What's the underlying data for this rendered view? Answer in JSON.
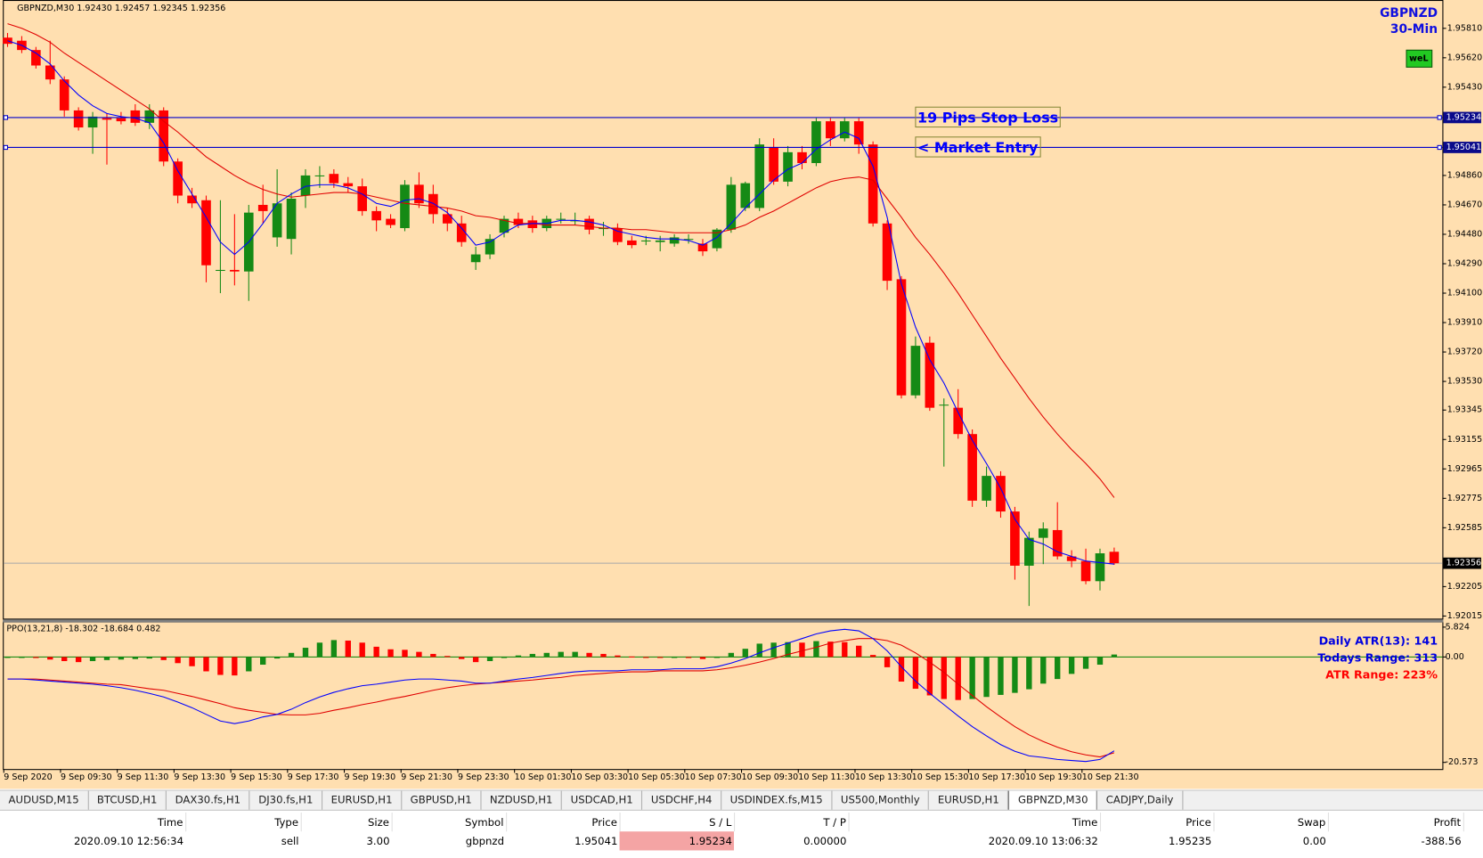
{
  "chart": {
    "header": "GBPNZD,M30  1.92430 1.92457 1.92345 1.92356",
    "symbol": "GBPNZD",
    "timeframe": "30-Min",
    "badge": "weL",
    "ylim": [
      1.91992,
      1.95993
    ],
    "yticks": [
      {
        "value": 1.9581,
        "label": "1.95810"
      },
      {
        "value": 1.9562,
        "label": "1.95620"
      },
      {
        "value": 1.9543,
        "label": "1.95430"
      },
      {
        "value": 1.9486,
        "label": "1.94860"
      },
      {
        "value": 1.9467,
        "label": "1.94670"
      },
      {
        "value": 1.9448,
        "label": "1.94480"
      },
      {
        "value": 1.9429,
        "label": "1.94290"
      },
      {
        "value": 1.941,
        "label": "1.94100"
      },
      {
        "value": 1.9391,
        "label": "1.93910"
      },
      {
        "value": 1.9372,
        "label": "1.93720"
      },
      {
        "value": 1.9353,
        "label": "1.93530"
      },
      1.93345,
      1.93155,
      1.92965,
      1.92775,
      1.92585,
      1.92205,
      1.92015
    ],
    "levels": [
      {
        "name": "19 Pips Stop Loss",
        "value": 1.95234,
        "label": "1.95234",
        "color": "#0000cc"
      },
      {
        "name": "< Market Entry",
        "value": 1.95041,
        "label": "1.95041",
        "color": "#0000cc"
      }
    ],
    "last_price": {
      "value": 1.92356,
      "label": "1.92356"
    },
    "up_color": "#158a15",
    "down_color": "#ff0000",
    "open": [
      1.9575,
      1.9573,
      1.9567,
      1.9557,
      1.9548,
      1.9528,
      1.9517,
      1.9523,
      1.9523,
      1.9528,
      1.952,
      1.9528,
      1.9495,
      1.9473,
      1.947,
      1.9425,
      1.9425,
      1.9424,
      1.9467,
      1.9446,
      1.9445,
      1.9473,
      1.9486,
      1.9487,
      1.9481,
      1.9479,
      1.9463,
      1.9458,
      1.9452,
      1.948,
      1.9474,
      1.9461,
      1.9455,
      1.943,
      1.9435,
      1.9449,
      1.9458,
      1.9457,
      1.9452,
      1.9458,
      1.9457,
      1.9458,
      1.9452,
      1.9452,
      1.9444,
      1.9444,
      1.9443,
      1.9442,
      1.9445,
      1.9442,
      1.9439,
      1.9451,
      1.9465,
      1.9465,
      1.9504,
      1.9482,
      1.9501,
      1.9494,
      1.9521,
      1.951,
      1.9521,
      1.9506,
      1.9455,
      1.9419,
      1.9344,
      1.9378,
      1.9338,
      1.9336,
      1.9319,
      1.9276,
      1.9292,
      1.9269,
      1.9234,
      1.9252,
      1.9257,
      1.924,
      1.9237,
      1.9224,
      1.9243
    ],
    "high": [
      1.9578,
      1.9576,
      1.9569,
      1.9573,
      1.955,
      1.953,
      1.9527,
      1.9526,
      1.9527,
      1.9532,
      1.9532,
      1.953,
      1.9497,
      1.9478,
      1.9473,
      1.947,
      1.9461,
      1.9467,
      1.948,
      1.949,
      1.9475,
      1.949,
      1.9492,
      1.949,
      1.9485,
      1.9484,
      1.9466,
      1.9461,
      1.9483,
      1.9488,
      1.948,
      1.9465,
      1.946,
      1.944,
      1.9448,
      1.946,
      1.9462,
      1.946,
      1.946,
      1.9462,
      1.9462,
      1.946,
      1.9456,
      1.9455,
      1.9447,
      1.9447,
      1.9447,
      1.9448,
      1.9448,
      1.9445,
      1.9452,
      1.9485,
      1.9482,
      1.951,
      1.951,
      1.9505,
      1.9505,
      1.9523,
      1.9523,
      1.9523,
      1.9523,
      1.9508,
      1.9457,
      1.9421,
      1.9382,
      1.9382,
      1.9342,
      1.9348,
      1.9322,
      1.9298,
      1.9295,
      1.9272,
      1.9256,
      1.9262,
      1.9275,
      1.9244,
      1.9245,
      1.9245,
      1.92457
    ],
    "low": [
      1.9569,
      1.9565,
      1.9555,
      1.9545,
      1.9524,
      1.9515,
      1.95,
      1.9493,
      1.9519,
      1.9518,
      1.9516,
      1.9492,
      1.9468,
      1.9465,
      1.9417,
      1.941,
      1.9415,
      1.9405,
      1.9455,
      1.944,
      1.9435,
      1.9465,
      1.9478,
      1.9478,
      1.9475,
      1.946,
      1.945,
      1.9452,
      1.945,
      1.9465,
      1.9455,
      1.945,
      1.944,
      1.9425,
      1.9432,
      1.9446,
      1.9452,
      1.9449,
      1.945,
      1.9455,
      1.9454,
      1.9448,
      1.9447,
      1.9441,
      1.9439,
      1.9441,
      1.9437,
      1.944,
      1.9442,
      1.9434,
      1.9437,
      1.9449,
      1.9463,
      1.9463,
      1.948,
      1.9479,
      1.949,
      1.9492,
      1.9505,
      1.9508,
      1.95,
      1.9453,
      1.9412,
      1.9342,
      1.9342,
      1.9334,
      1.9298,
      1.9316,
      1.9272,
      1.9272,
      1.9265,
      1.9225,
      1.9208,
      1.9235,
      1.9238,
      1.9233,
      1.9222,
      1.9218,
      1.92345
    ],
    "close": [
      1.9571,
      1.9567,
      1.9557,
      1.9548,
      1.9528,
      1.9517,
      1.9524,
      1.9522,
      1.9521,
      1.952,
      1.9528,
      1.9495,
      1.9473,
      1.9468,
      1.9428,
      1.9425,
      1.9424,
      1.9462,
      1.9463,
      1.9468,
      1.9471,
      1.9486,
      1.9486,
      1.9481,
      1.9479,
      1.9463,
      1.9457,
      1.9454,
      1.948,
      1.9468,
      1.9461,
      1.9455,
      1.9443,
      1.9435,
      1.9445,
      1.9458,
      1.9454,
      1.9452,
      1.9458,
      1.9458,
      1.9457,
      1.9451,
      1.9452,
      1.9443,
      1.9441,
      1.9444,
      1.9444,
      1.9446,
      1.9445,
      1.9437,
      1.9451,
      1.948,
      1.9481,
      1.9506,
      1.9482,
      1.9501,
      1.9494,
      1.9521,
      1.951,
      1.9521,
      1.9506,
      1.9455,
      1.9418,
      1.9344,
      1.9376,
      1.9336,
      1.9338,
      1.9319,
      1.9276,
      1.9292,
      1.9269,
      1.9234,
      1.9252,
      1.9258,
      1.924,
      1.9237,
      1.9224,
      1.9242,
      1.92356
    ],
    "ma_fast": {
      "color": "#0000ff",
      "values": [
        1.9573,
        1.957,
        1.9565,
        1.9558,
        1.9547,
        1.9538,
        1.9531,
        1.9526,
        1.9524,
        1.9523,
        1.952,
        1.9507,
        1.9489,
        1.9474,
        1.9459,
        1.9443,
        1.9435,
        1.9443,
        1.9455,
        1.9468,
        1.9474,
        1.9479,
        1.948,
        1.948,
        1.9478,
        1.9474,
        1.9468,
        1.9466,
        1.947,
        1.9471,
        1.9468,
        1.9462,
        1.9452,
        1.9441,
        1.9443,
        1.9449,
        1.9454,
        1.9455,
        1.9455,
        1.9457,
        1.9457,
        1.9456,
        1.9454,
        1.945,
        1.9448,
        1.9446,
        1.9445,
        1.9445,
        1.9444,
        1.9441,
        1.9446,
        1.9455,
        1.9465,
        1.9474,
        1.9483,
        1.949,
        1.9494,
        1.9503,
        1.9509,
        1.9514,
        1.951,
        1.9492,
        1.9459,
        1.9416,
        1.9388,
        1.9367,
        1.9352,
        1.9333,
        1.9315,
        1.93,
        1.9284,
        1.9264,
        1.9251,
        1.9248,
        1.9243,
        1.924,
        1.9237,
        1.9236,
        1.9235
      ]
    },
    "ma_slow": {
      "color": "#e00000",
      "values": [
        1.9584,
        1.9581,
        1.9577,
        1.9572,
        1.9565,
        1.9559,
        1.9553,
        1.9547,
        1.9541,
        1.9535,
        1.9529,
        1.9521,
        1.9514,
        1.9506,
        1.9498,
        1.9492,
        1.9486,
        1.9481,
        1.9477,
        1.9474,
        1.9472,
        1.9473,
        1.9474,
        1.9475,
        1.9475,
        1.9474,
        1.9472,
        1.947,
        1.9468,
        1.9467,
        1.9466,
        1.9465,
        1.9463,
        1.946,
        1.9459,
        1.9457,
        1.9455,
        1.9455,
        1.9454,
        1.9454,
        1.9454,
        1.9453,
        1.9452,
        1.9452,
        1.9451,
        1.9451,
        1.945,
        1.9449,
        1.9449,
        1.9449,
        1.9449,
        1.9451,
        1.9454,
        1.9459,
        1.9463,
        1.9468,
        1.9473,
        1.9478,
        1.9482,
        1.9484,
        1.9485,
        1.9483,
        1.9471,
        1.9459,
        1.9446,
        1.9435,
        1.9423,
        1.941,
        1.9396,
        1.9382,
        1.9368,
        1.9355,
        1.9342,
        1.933,
        1.9319,
        1.9309,
        1.93,
        1.929,
        1.9278
      ]
    },
    "xticks": [
      "9 Sep 2020",
      "9 Sep 09:30",
      "9 Sep 11:30",
      "9 Sep 13:30",
      "9 Sep 15:30",
      "9 Sep 17:30",
      "9 Sep 19:30",
      "9 Sep 21:30",
      "9 Sep 23:30",
      "10 Sep 01:30",
      "10 Sep 03:30",
      "10 Sep 05:30",
      "10 Sep 07:30",
      "10 Sep 09:30",
      "10 Sep 11:30",
      "10 Sep 13:30",
      "10 Sep 15:30",
      "10 Sep 17:30",
      "10 Sep 19:30",
      "10 Sep 21:30"
    ]
  },
  "indicator": {
    "title": "PPO(13,21,8) -18.302 -18.684 0.482",
    "ylim": [
      -21.87,
      6.93
    ],
    "yticks": [
      5.824,
      {
        "value": 0,
        "label": "0.00"
      },
      -20.573
    ],
    "zero_color": "#008000",
    "histogram": [
      0,
      0,
      -0.2,
      -0.5,
      -0.8,
      -1.0,
      -0.8,
      -0.6,
      -0.5,
      -0.4,
      -0.3,
      -0.6,
      -1.2,
      -1.8,
      -2.8,
      -3.5,
      -3.6,
      -2.8,
      -1.5,
      -0.3,
      0.8,
      1.8,
      2.8,
      3.3,
      3.2,
      2.8,
      2.0,
      1.5,
      1.4,
      1.0,
      0.6,
      0.2,
      -0.4,
      -1.0,
      -0.8,
      -0.2,
      0.3,
      0.6,
      0.8,
      1.0,
      1.0,
      0.8,
      0.6,
      0.3,
      0.1,
      0,
      -0.1,
      -0.1,
      -0.2,
      -0.4,
      -0.1,
      0.8,
      1.6,
      2.6,
      2.8,
      2.9,
      2.8,
      3.1,
      3.0,
      2.9,
      2.2,
      0.4,
      -2.0,
      -4.8,
      -6.2,
      -7.5,
      -8.2,
      -8.4,
      -8.2,
      -7.8,
      -7.4,
      -7.0,
      -6.3,
      -5.2,
      -4.3,
      -3.3,
      -2.3,
      -1.5,
      0.482
    ],
    "ppo": {
      "color": "#0000ff",
      "values": [
        -4.3,
        -4.3,
        -4.5,
        -4.7,
        -4.9,
        -5.1,
        -5.3,
        -5.6,
        -6.0,
        -6.5,
        -7.1,
        -7.8,
        -8.8,
        -9.9,
        -11.2,
        -12.5,
        -13.0,
        -12.5,
        -11.7,
        -11.2,
        -10.2,
        -8.9,
        -7.8,
        -6.9,
        -6.2,
        -5.6,
        -5.3,
        -4.9,
        -4.5,
        -4.3,
        -4.3,
        -4.5,
        -4.7,
        -5.1,
        -5.1,
        -4.7,
        -4.3,
        -4.0,
        -3.6,
        -3.2,
        -2.9,
        -2.7,
        -2.7,
        -2.7,
        -2.5,
        -2.5,
        -2.5,
        -2.3,
        -2.3,
        -2.3,
        -1.9,
        -1.2,
        -0.3,
        0.8,
        1.8,
        2.7,
        3.6,
        4.5,
        5.1,
        5.4,
        5.1,
        3.6,
        1.2,
        -1.9,
        -4.7,
        -7.1,
        -9.3,
        -11.5,
        -13.6,
        -15.4,
        -17.1,
        -18.4,
        -19.3,
        -19.6,
        -20.0,
        -20.2,
        -20.4,
        -20.0,
        -18.302
      ]
    },
    "signal": {
      "color": "#e00000",
      "values": [
        -4.3,
        -4.3,
        -4.3,
        -4.5,
        -4.7,
        -4.9,
        -5.1,
        -5.3,
        -5.4,
        -5.8,
        -6.2,
        -6.5,
        -7.1,
        -7.7,
        -8.4,
        -9.1,
        -9.9,
        -10.4,
        -10.8,
        -11.2,
        -11.3,
        -11.3,
        -11.0,
        -10.4,
        -9.9,
        -9.3,
        -8.8,
        -8.2,
        -7.7,
        -7.1,
        -6.5,
        -6.0,
        -5.6,
        -5.3,
        -5.1,
        -4.9,
        -4.7,
        -4.5,
        -4.2,
        -4.0,
        -3.6,
        -3.4,
        -3.2,
        -3.0,
        -2.9,
        -2.9,
        -2.7,
        -2.7,
        -2.7,
        -2.7,
        -2.5,
        -2.1,
        -1.6,
        -1.0,
        -0.3,
        0.5,
        1.2,
        1.9,
        2.7,
        3.2,
        3.6,
        3.6,
        3.2,
        2.3,
        0.8,
        -1.0,
        -3.0,
        -5.3,
        -7.5,
        -9.7,
        -11.7,
        -13.6,
        -15.2,
        -16.5,
        -17.6,
        -18.5,
        -19.1,
        -19.5,
        -18.684
      ]
    },
    "stats": [
      {
        "text": "Daily ATR(13): 141",
        "color": "#0000e0"
      },
      {
        "text": "Todays Range: 313",
        "color": "#0000e0"
      },
      {
        "text": "ATR Range: 223%",
        "color": "#ff0000"
      }
    ]
  },
  "tabs": [
    "AUDUSD,M15",
    "BTCUSD,H1",
    "DAX30.fs,H1",
    "DJ30.fs,H1",
    "EURUSD,H1",
    "GBPUSD,H1",
    "NZDUSD,H1",
    "USDCAD,H1",
    "USDCHF,H4",
    "USDINDEX.fs,M15",
    "US500,Monthly",
    "EURUSD,H1",
    "GBPNZD,M30",
    "CADJPY,Daily"
  ],
  "active_tab": 12,
  "trades": {
    "columns": [
      "Time",
      "Type",
      "Size",
      "Symbol",
      "Price",
      "S / L",
      "T / P",
      "Time",
      "Price",
      "Swap",
      "Profit"
    ],
    "rows": [
      [
        "2020.09.10 12:56:34",
        "sell",
        "3.00",
        "gbpnzd",
        "1.95041",
        "1.95234",
        "0.00000",
        "2020.09.10 13:06:32",
        "1.95235",
        "0.00",
        "-388.56"
      ]
    ]
  }
}
